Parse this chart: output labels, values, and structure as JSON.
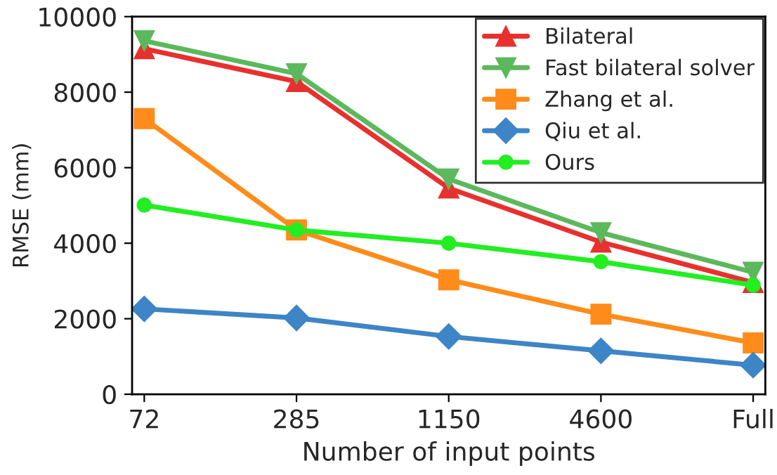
{
  "chart_data": {
    "type": "line",
    "xlabel": "Number of input points",
    "ylabel": "RMSE (mm)",
    "categories": [
      "72",
      "285",
      "1150",
      "4600",
      "Full"
    ],
    "ylim": [
      0,
      10000
    ],
    "yticks": [
      0,
      2000,
      4000,
      6000,
      8000,
      10000
    ],
    "grid": false,
    "legend": "top right",
    "line_style": "solid",
    "series": [
      {
        "name": "Bilateral",
        "color": "#e8302e",
        "marker": "triangle",
        "values": [
          9150,
          8280,
          5460,
          4030,
          2960
        ]
      },
      {
        "name": "Fast bilateral solver",
        "color": "#5cb85c",
        "marker": "triangle_down",
        "values": [
          9360,
          8490,
          5700,
          4280,
          3230
        ]
      },
      {
        "name": "Zhang et al.",
        "color": "#ff8c1a",
        "marker": "square",
        "values": [
          7300,
          4350,
          3030,
          2120,
          1360
        ]
      },
      {
        "name": "Qiu et al.",
        "color": "#3d85c6",
        "marker": "diamond",
        "values": [
          2260,
          2020,
          1530,
          1150,
          770
        ]
      },
      {
        "name": "Ours",
        "color": "#22ee22",
        "marker": "circle",
        "values": [
          5010,
          4350,
          4000,
          3510,
          2890
        ]
      }
    ]
  }
}
